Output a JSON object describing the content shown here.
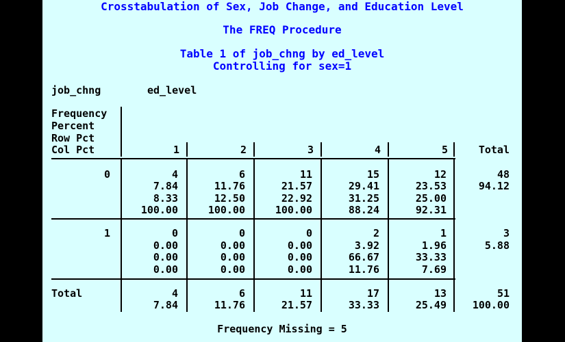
{
  "titles": {
    "main": "Crosstabulation of Sex, Job Change, and Education Level",
    "procedure": "The FREQ Procedure",
    "table": "Table 1 of job_chng by ed_level",
    "controlling": "Controlling for sex=1"
  },
  "table": {
    "row_var": "job_chng",
    "col_var": "ed_level",
    "stat_labels": [
      "Frequency",
      "Percent",
      "Row Pct",
      "Col Pct"
    ],
    "col_headers": [
      "1",
      "2",
      "3",
      "4",
      "5",
      "Total"
    ],
    "rows": [
      {
        "label": "0",
        "cells": [
          [
            "4",
            "7.84",
            "8.33",
            "100.00"
          ],
          [
            "6",
            "11.76",
            "12.50",
            "100.00"
          ],
          [
            "11",
            "21.57",
            "22.92",
            "100.00"
          ],
          [
            "15",
            "29.41",
            "31.25",
            "88.24"
          ],
          [
            "12",
            "23.53",
            "25.00",
            "92.31"
          ]
        ],
        "total": [
          "48",
          "94.12"
        ]
      },
      {
        "label": "1",
        "cells": [
          [
            "0",
            "0.00",
            "0.00",
            "0.00"
          ],
          [
            "0",
            "0.00",
            "0.00",
            "0.00"
          ],
          [
            "0",
            "0.00",
            "0.00",
            "0.00"
          ],
          [
            "2",
            "3.92",
            "66.67",
            "11.76"
          ],
          [
            "1",
            "1.96",
            "33.33",
            "7.69"
          ]
        ],
        "total": [
          "3",
          "5.88"
        ]
      }
    ],
    "total_row": {
      "label": "Total",
      "cells": [
        [
          "4",
          "7.84"
        ],
        [
          "6",
          "11.76"
        ],
        [
          "11",
          "21.57"
        ],
        [
          "17",
          "33.33"
        ],
        [
          "13",
          "25.49"
        ]
      ],
      "total": [
        "51",
        "100.00"
      ]
    }
  },
  "footer": "Frequency Missing = 5"
}
